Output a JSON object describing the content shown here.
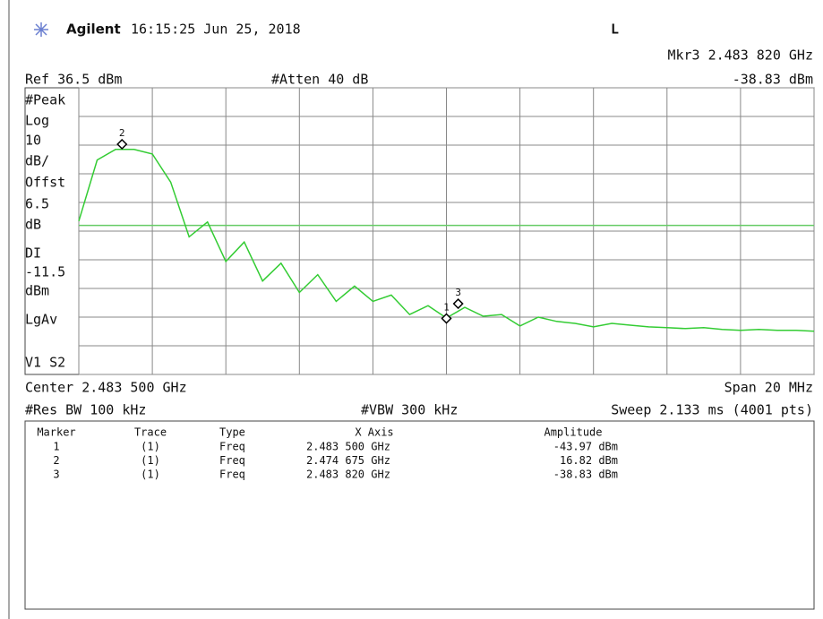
{
  "header": {
    "brand": "Agilent",
    "datetime": "16:15:25  Jun 25, 2018",
    "status": "L",
    "marker_readout": "Mkr3  2.483 820 GHz",
    "ref": "Ref 36.5 dBm",
    "atten": "#Atten 40 dB",
    "marker_amplitude": "-38.83 dBm"
  },
  "left_labels": [
    "#Peak",
    "Log",
    "10",
    "dB/",
    "Offst",
    "6.5",
    "dB",
    "DI",
    "dBm",
    "LgAv",
    "V1  S2"
  ],
  "footer": {
    "center": "Center 2.483 500 GHz",
    "span": "Span 20 MHz",
    "rbw": "#Res BW 100 kHz",
    "vbw": "#VBW 300 kHz",
    "sweep": "Sweep 2.133 ms (4001 pts)"
  },
  "table": {
    "columns": [
      "Marker",
      "Trace",
      "Type",
      "X Axis",
      "Amplitude"
    ],
    "rows": [
      [
        "1",
        "(1)",
        "Freq",
        "2.483 500 GHz",
        "-43.97 dBm"
      ],
      [
        "2",
        "(1)",
        "Freq",
        "2.474 675 GHz",
        "16.82 dBm"
      ],
      [
        "3",
        "(1)",
        "Freq",
        "2.483 820 GHz",
        "-38.83 dBm"
      ]
    ]
  },
  "chart_data": {
    "type": "line",
    "color": "#33cc33",
    "grid": true,
    "xlim": [
      2.4735,
      2.4935
    ],
    "ylim": [
      -63.5,
      36.5
    ],
    "xticks": [
      2.4735,
      2.4755,
      2.4775,
      2.4795,
      2.4815,
      2.4835,
      2.4855,
      2.4875,
      2.4895,
      2.4915,
      2.4935
    ],
    "yticks": [
      -63.5,
      -53.5,
      -43.5,
      -33.5,
      -23.5,
      -13.5,
      -3.5,
      6.5,
      16.5,
      26.5,
      36.5
    ],
    "display_line": -11.5,
    "display_line_color": "#66cc66",
    "x": [
      2.4735,
      2.474,
      2.4745,
      2.475,
      2.4755,
      2.476,
      2.4765,
      2.477,
      2.4775,
      2.478,
      2.4785,
      2.479,
      2.4795,
      2.48,
      2.4805,
      2.481,
      2.4815,
      2.482,
      2.4825,
      2.483,
      2.4835,
      2.484,
      2.4845,
      2.485,
      2.4855,
      2.486,
      2.4865,
      2.487,
      2.4875,
      2.488,
      2.4885,
      2.489,
      2.4895,
      2.49,
      2.4905,
      2.491,
      2.4915,
      2.492,
      2.4925,
      2.493,
      2.4935
    ],
    "values": [
      -10,
      11.3,
      15,
      15,
      13.4,
      3.6,
      -15.5,
      -10.3,
      -24.1,
      -17.3,
      -30.9,
      -24.7,
      -34.9,
      -28.7,
      -38,
      -32.7,
      -38,
      -35.8,
      -42.6,
      -39.5,
      -43.8,
      -40.1,
      -43.2,
      -42.6,
      -46.6,
      -43.5,
      -45,
      -45.7,
      -46.9,
      -45.7,
      -46.3,
      -46.9,
      -47.2,
      -47.5,
      -47.2,
      -47.8,
      -48.1,
      -47.8,
      -48.1,
      -48.1,
      -48.4
    ],
    "markers": {
      "labels": [
        "1",
        "2",
        "3"
      ],
      "x": [
        2.4835,
        2.474675,
        2.48382
      ],
      "values": [
        -43.97,
        16.82,
        -38.83
      ]
    }
  }
}
